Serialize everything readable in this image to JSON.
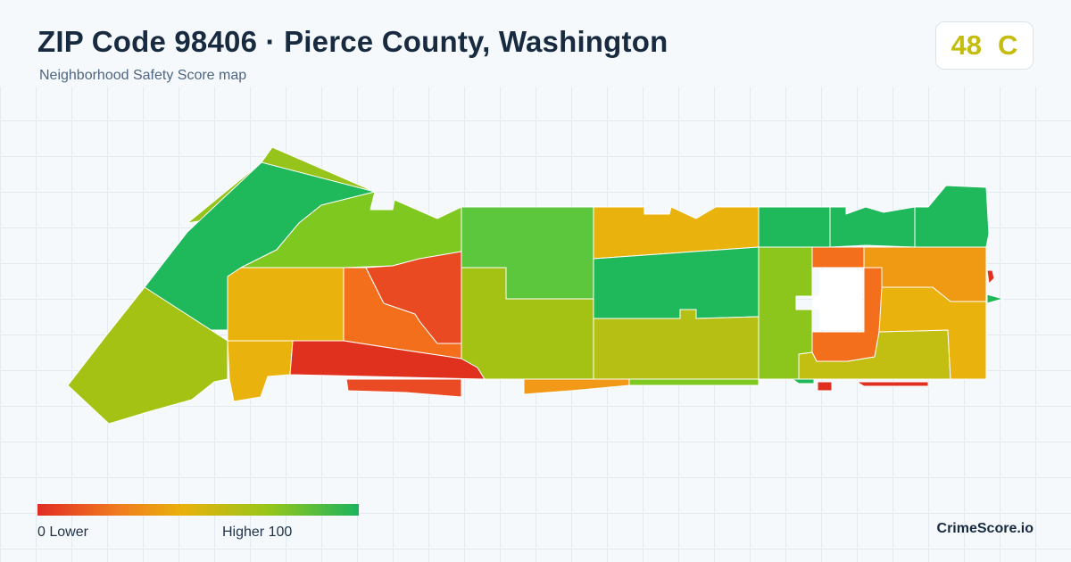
{
  "header": {
    "title": "ZIP Code 98406 · Pierce County, Washington",
    "subtitle": "Neighborhood Safety Score map"
  },
  "score": {
    "value": "48",
    "grade": "C",
    "color": "#c4bc0f"
  },
  "legend": {
    "min_label": "0  Lower",
    "max_label": "Higher  100",
    "colors": [
      "#e12d23",
      "#f07c1f",
      "#e9b10c",
      "#96c61a",
      "#1cb45c"
    ]
  },
  "brand": "CrimeScore.io",
  "map_colors": {
    "red": "#e0311f",
    "red_orange": "#e94a22",
    "orange": "#f36f1c",
    "orange_gold": "#ef9a12",
    "gold": "#eab20c",
    "yellow_green": "#c3bf12",
    "olive_green": "#a4c214",
    "lime": "#7ec81f",
    "green": "#5cc63c",
    "emerald": "#1fb95b"
  }
}
